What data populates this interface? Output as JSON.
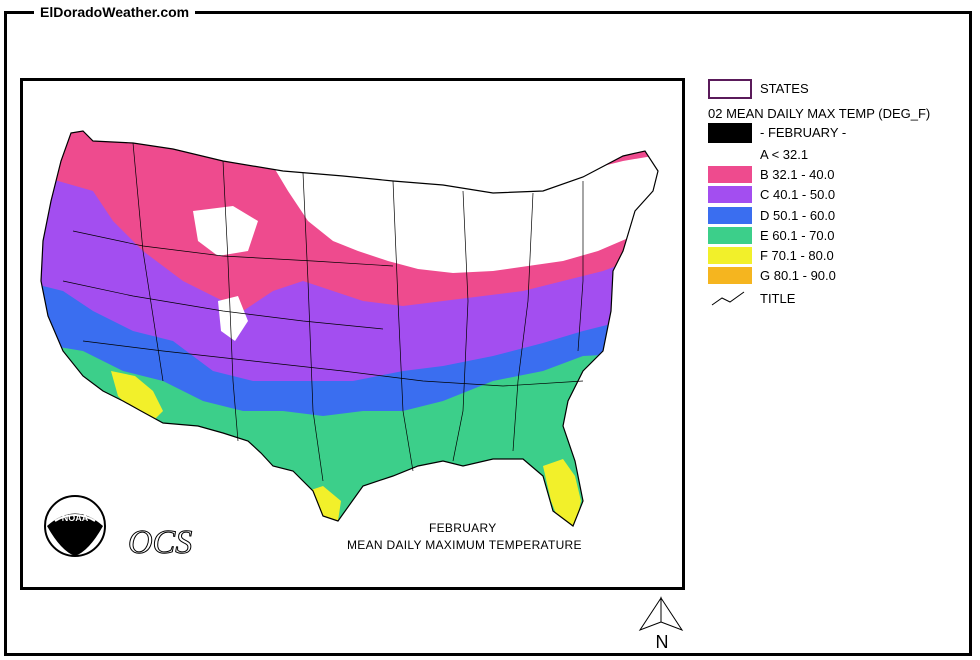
{
  "header": {
    "site_title": "ElDoradoWeather.com"
  },
  "legend": {
    "states_label": "STATES",
    "variable_label": "02 MEAN DAILY MAX TEMP (DEG_F)",
    "month_label": "- FEBRUARY -",
    "title_label": "TITLE",
    "classes": [
      {
        "label": "A < 32.1",
        "color": "#ffffff"
      },
      {
        "label": "B 32.1 - 40.0",
        "color": "#ee4b8e"
      },
      {
        "label": "C 40.1 - 50.0",
        "color": "#a34ef0"
      },
      {
        "label": "D 50.1 - 60.0",
        "color": "#3a6ef0"
      },
      {
        "label": "E 60.1 - 70.0",
        "color": "#3ccf8a"
      },
      {
        "label": "F 70.1 - 80.0",
        "color": "#f2f02a"
      },
      {
        "label": "G 80.1 - 90.0",
        "color": "#f5b51f"
      }
    ]
  },
  "map": {
    "caption_line1": "FEBRUARY",
    "caption_line2": "MEAN DAILY MAXIMUM TEMPERATURE",
    "logo_noaa_text": "NOAA",
    "logo_ocs_text": "OCS",
    "north_label": "N"
  }
}
